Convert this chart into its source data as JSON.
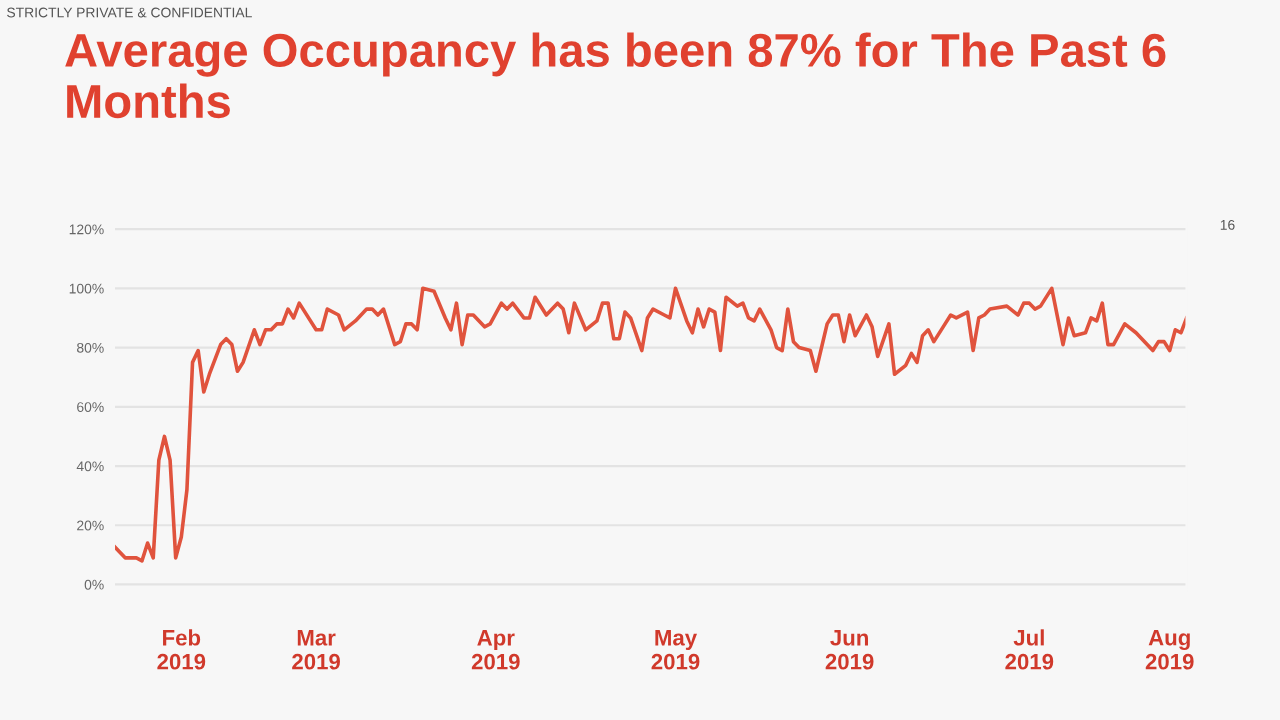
{
  "chart_data": {
    "type": "line",
    "title": "Average Occupancy has been 87% for The Past 6 Months",
    "annotations": [
      "STRICTLY PRIVATE & CONFIDENTIAL",
      "16"
    ],
    "series": [
      {
        "color": "#e0533d",
        "x": [
          "2019-02-09",
          "2019-02-11",
          "2019-02-13",
          "2019-02-14",
          "2019-02-15",
          "2019-02-16",
          "2019-02-17",
          "2019-02-18",
          "2019-02-19",
          "2019-02-20",
          "2019-02-21",
          "2019-02-22",
          "2019-02-23",
          "2019-02-24",
          "2019-02-25",
          "2019-02-26",
          "2019-02-28",
          "2019-03-01",
          "2019-03-02",
          "2019-03-03",
          "2019-03-04",
          "2019-03-06",
          "2019-03-07",
          "2019-03-08",
          "2019-03-09",
          "2019-03-10",
          "2019-03-11",
          "2019-03-12",
          "2019-03-13",
          "2019-03-14",
          "2019-03-17",
          "2019-03-18",
          "2019-03-19",
          "2019-03-21",
          "2019-03-22",
          "2019-03-24",
          "2019-03-26",
          "2019-03-27",
          "2019-03-28",
          "2019-03-29",
          "2019-03-31",
          "2019-04-01",
          "2019-04-02",
          "2019-04-03",
          "2019-04-04",
          "2019-04-05",
          "2019-04-07",
          "2019-04-09",
          "2019-04-10",
          "2019-04-11",
          "2019-04-12",
          "2019-04-13",
          "2019-04-14",
          "2019-04-16",
          "2019-04-17",
          "2019-04-19",
          "2019-04-20",
          "2019-04-21",
          "2019-04-23",
          "2019-04-24",
          "2019-04-25",
          "2019-04-27",
          "2019-04-29",
          "2019-04-30",
          "2019-05-01",
          "2019-05-02",
          "2019-05-04",
          "2019-05-06",
          "2019-05-07",
          "2019-05-08",
          "2019-05-09",
          "2019-05-10",
          "2019-05-11",
          "2019-05-12",
          "2019-05-14",
          "2019-05-15",
          "2019-05-16",
          "2019-05-18",
          "2019-05-19",
          "2019-05-20",
          "2019-05-22",
          "2019-05-23",
          "2019-05-24",
          "2019-05-25",
          "2019-05-26",
          "2019-05-27",
          "2019-05-28",
          "2019-05-29",
          "2019-05-31",
          "2019-06-01",
          "2019-06-02",
          "2019-06-03",
          "2019-06-04",
          "2019-06-06",
          "2019-06-07",
          "2019-06-08",
          "2019-06-09",
          "2019-06-10",
          "2019-06-11",
          "2019-06-13",
          "2019-06-14",
          "2019-06-16",
          "2019-06-17",
          "2019-06-18",
          "2019-06-19",
          "2019-06-20",
          "2019-06-21",
          "2019-06-23",
          "2019-06-24",
          "2019-06-25",
          "2019-06-27",
          "2019-06-28",
          "2019-06-30",
          "2019-07-01",
          "2019-07-02",
          "2019-07-03",
          "2019-07-04",
          "2019-07-05",
          "2019-07-07",
          "2019-07-08",
          "2019-07-09",
          "2019-07-11",
          "2019-07-12",
          "2019-07-13",
          "2019-07-14",
          "2019-07-15",
          "2019-07-18",
          "2019-07-20",
          "2019-07-21",
          "2019-07-22",
          "2019-07-23",
          "2019-07-24",
          "2019-07-26",
          "2019-07-28",
          "2019-07-29",
          "2019-07-30",
          "2019-08-01",
          "2019-08-02",
          "2019-08-03",
          "2019-08-04",
          "2019-08-05",
          "2019-08-06",
          "2019-08-08",
          "2019-08-10",
          "2019-08-13",
          "2019-08-14",
          "2019-08-15",
          "2019-08-16",
          "2019-08-17",
          "2019-08-18",
          "2019-08-19"
        ],
        "values": [
          13,
          9,
          9,
          8,
          14,
          9,
          42,
          50,
          42,
          9,
          16,
          32,
          75,
          79,
          65,
          71,
          81,
          83,
          81,
          72,
          75,
          86,
          81,
          86,
          86,
          88,
          88,
          93,
          90,
          95,
          86,
          86,
          93,
          91,
          86,
          89,
          93,
          93,
          91,
          93,
          81,
          82,
          88,
          88,
          86,
          100,
          99,
          90,
          86,
          95,
          81,
          91,
          91,
          87,
          88,
          95,
          93,
          95,
          90,
          90,
          97,
          91,
          95,
          93,
          85,
          95,
          86,
          89,
          95,
          95,
          83,
          83,
          92,
          90,
          79,
          90,
          93,
          91,
          90,
          100,
          89,
          85,
          93,
          87,
          93,
          92,
          79,
          97,
          94,
          95,
          90,
          89,
          93,
          86,
          80,
          79,
          93,
          82,
          80,
          79,
          72,
          88,
          91,
          91,
          82,
          91,
          84,
          91,
          87,
          77,
          88,
          71,
          74,
          78,
          75,
          84,
          86,
          82,
          88,
          91,
          90,
          92,
          79,
          90,
          91,
          93,
          94,
          91,
          95,
          95,
          93,
          94,
          100,
          81,
          90,
          84,
          85,
          90,
          89,
          95,
          81,
          81,
          88,
          85,
          79,
          82,
          82,
          79,
          86,
          85,
          90
        ]
      }
    ],
    "xlim": [
      "2019-02-09",
      "2019-08-19"
    ],
    "xticks": [
      {
        "value": "2019-02-21",
        "label": "Feb\n2019"
      },
      {
        "value": "2019-03-17",
        "label": "Mar\n2019"
      },
      {
        "value": "2019-04-18",
        "label": "Apr\n2019"
      },
      {
        "value": "2019-05-20",
        "label": "May\n2019"
      },
      {
        "value": "2019-06-20",
        "label": "Jun\n2019"
      },
      {
        "value": "2019-07-22",
        "label": "Jul\n2019"
      },
      {
        "value": "2019-08-16",
        "label": "Aug\n2019"
      }
    ],
    "ylim": [
      -2,
      122
    ],
    "yticks": [
      {
        "value": 0,
        "label": "0%"
      },
      {
        "value": 20,
        "label": "20%"
      },
      {
        "value": 40,
        "label": "40%"
      },
      {
        "value": 60,
        "label": "60%"
      },
      {
        "value": 80,
        "label": "80%"
      },
      {
        "value": 100,
        "label": "100%"
      },
      {
        "value": 120,
        "label": "120%"
      }
    ],
    "grid": "y",
    "legend": false,
    "marker": "none",
    "line_style": "solid"
  }
}
